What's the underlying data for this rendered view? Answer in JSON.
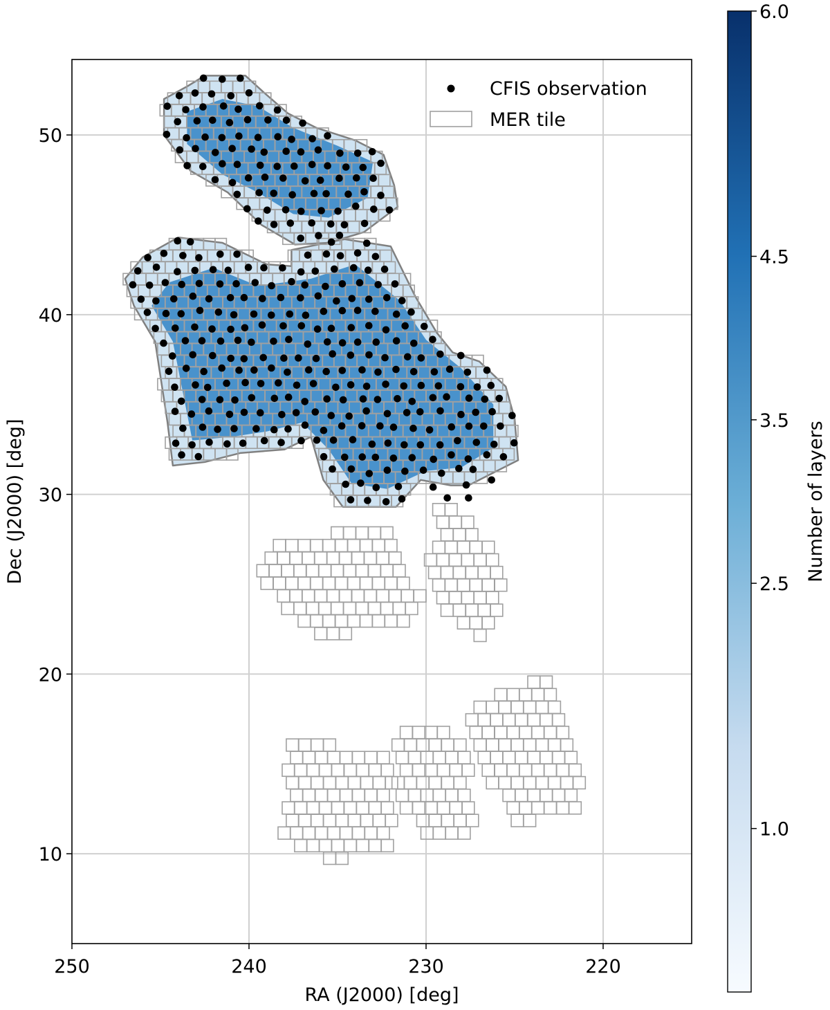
{
  "chart_data": {
    "type": "scatter",
    "xlabel": "RA (J2000) [deg]",
    "ylabel": "Dec (J2000) [deg]",
    "xlim": [
      250,
      215
    ],
    "ylim": [
      5,
      54.2
    ],
    "x_inverted": true,
    "grid": true,
    "xticks": [
      {
        "value": 250,
        "label": "250"
      },
      {
        "value": 240,
        "label": "240"
      },
      {
        "value": 230,
        "label": "230"
      },
      {
        "value": 220,
        "label": "220"
      }
    ],
    "yticks": [
      {
        "value": 10,
        "label": "10"
      },
      {
        "value": 20,
        "label": "20"
      },
      {
        "value": 30,
        "label": "30"
      },
      {
        "value": 40,
        "label": "40"
      },
      {
        "value": 50,
        "label": "50"
      }
    ],
    "legend": {
      "placement": "top-right",
      "entries": [
        {
          "label": "CFIS observation",
          "marker": "dot",
          "color": "#000000"
        },
        {
          "label": "MER tile",
          "marker": "square-outline",
          "color": "#a0a0a0"
        }
      ]
    },
    "colorbar": {
      "label": "Number of layers",
      "range": [
        0,
        6.0
      ],
      "ticks": [
        {
          "value": 1.0,
          "label": "1.0"
        },
        {
          "value": 2.5,
          "label": "2.5"
        },
        {
          "value": 3.5,
          "label": "3.5"
        },
        {
          "value": 4.5,
          "label": "4.5"
        },
        {
          "value": 6.0,
          "label": "6.0"
        }
      ],
      "colors": [
        "#f7fbff",
        "#c6dbef",
        "#6baed6",
        "#2171b5",
        "#08306b"
      ]
    },
    "covered_regions": [
      {
        "name": "north-patch",
        "layers_fill": "#cfe3f2",
        "core_layers_fill": "#3a88c8",
        "boundary_ra_dec": [
          [
            242.5,
            53.3
          ],
          [
            240.2,
            53.3
          ],
          [
            239.2,
            52.4
          ],
          [
            237.8,
            51.2
          ],
          [
            236.2,
            50.4
          ],
          [
            234.0,
            49.7
          ],
          [
            232.4,
            48.9
          ],
          [
            231.8,
            47.2
          ],
          [
            231.6,
            46.0
          ],
          [
            233.5,
            44.6
          ],
          [
            235.5,
            44.0
          ],
          [
            237.4,
            43.9
          ],
          [
            239.3,
            45.0
          ],
          [
            241.2,
            46.8
          ],
          [
            243.3,
            48.0
          ],
          [
            244.8,
            50.0
          ],
          [
            244.8,
            52.0
          ],
          [
            243.5,
            52.7
          ]
        ],
        "core_ra_dec": [
          [
            241.5,
            52.0
          ],
          [
            239.5,
            51.6
          ],
          [
            237.5,
            50.4
          ],
          [
            235.0,
            49.4
          ],
          [
            233.0,
            48.5
          ],
          [
            233.3,
            46.5
          ],
          [
            235.5,
            45.4
          ],
          [
            237.5,
            45.6
          ],
          [
            239.5,
            46.8
          ],
          [
            241.5,
            47.8
          ],
          [
            243.5,
            49.5
          ],
          [
            243.5,
            51.3
          ]
        ]
      },
      {
        "name": "central-patch",
        "layers_fill": "#cfe3f2",
        "core_layers_fill": "#3a88c8",
        "boundary_ra_dec": [
          [
            246.0,
            43.2
          ],
          [
            244.0,
            44.3
          ],
          [
            241.5,
            44.0
          ],
          [
            239.0,
            42.8
          ],
          [
            237.6,
            42.7
          ],
          [
            237.6,
            43.6
          ],
          [
            234.6,
            44.2
          ],
          [
            232.0,
            43.8
          ],
          [
            230.6,
            41.0
          ],
          [
            229.4,
            39.0
          ],
          [
            228.5,
            37.9
          ],
          [
            227.0,
            37.4
          ],
          [
            225.5,
            36.0
          ],
          [
            225.0,
            34.2
          ],
          [
            224.8,
            31.9
          ],
          [
            226.0,
            31.3
          ],
          [
            227.6,
            30.5
          ],
          [
            228.6,
            30.5
          ],
          [
            230.3,
            30.8
          ],
          [
            231.7,
            29.3
          ],
          [
            234.7,
            29.3
          ],
          [
            235.8,
            30.8
          ],
          [
            236.5,
            33.2
          ],
          [
            238.0,
            32.5
          ],
          [
            240.5,
            32.3
          ],
          [
            242.5,
            31.8
          ],
          [
            244.3,
            31.6
          ],
          [
            244.6,
            34.0
          ],
          [
            245.3,
            38.5
          ],
          [
            246.5,
            40.5
          ],
          [
            247.0,
            42.0
          ]
        ],
        "core_ra_dec": [
          [
            244.5,
            41.8
          ],
          [
            242.0,
            42.6
          ],
          [
            239.5,
            41.6
          ],
          [
            236.5,
            42.0
          ],
          [
            234.0,
            42.8
          ],
          [
            231.5,
            40.8
          ],
          [
            230.0,
            38.6
          ],
          [
            228.0,
            37.0
          ],
          [
            226.2,
            35.0
          ],
          [
            226.2,
            32.6
          ],
          [
            228.0,
            31.5
          ],
          [
            230.0,
            31.3
          ],
          [
            232.2,
            30.3
          ],
          [
            234.2,
            30.6
          ],
          [
            235.5,
            32.5
          ],
          [
            237.0,
            34.0
          ],
          [
            239.0,
            33.5
          ],
          [
            241.0,
            33.2
          ],
          [
            243.2,
            33.0
          ],
          [
            243.8,
            36.0
          ],
          [
            244.3,
            38.5
          ],
          [
            245.5,
            40.5
          ]
        ]
      }
    ],
    "cfis_point_density_per_deg2": 0.5,
    "extra_cfis_points": [
      [
        228.8,
        29.8
      ],
      [
        227.6,
        29.8
      ],
      [
        229.6,
        30.4
      ],
      [
        226.3,
        30.8
      ]
    ],
    "mer_tile_regions": [
      {
        "name": "north-patch",
        "tile_size_deg": 0.65,
        "boundary_ra_dec": [
          [
            242.5,
            53.3
          ],
          [
            240.2,
            53.3
          ],
          [
            239.2,
            52.4
          ],
          [
            237.8,
            51.2
          ],
          [
            236.2,
            50.4
          ],
          [
            234.0,
            49.7
          ],
          [
            232.4,
            48.9
          ],
          [
            231.8,
            47.2
          ],
          [
            231.6,
            46.0
          ],
          [
            233.5,
            44.6
          ],
          [
            235.5,
            44.0
          ],
          [
            237.4,
            43.9
          ],
          [
            239.3,
            45.0
          ],
          [
            241.2,
            46.8
          ],
          [
            243.3,
            48.0
          ],
          [
            244.8,
            50.0
          ],
          [
            244.8,
            52.0
          ],
          [
            243.5,
            52.7
          ]
        ]
      },
      {
        "name": "central-patch",
        "tile_size_deg": 0.65,
        "boundary_ra_dec": [
          [
            246.0,
            43.2
          ],
          [
            244.0,
            44.3
          ],
          [
            241.5,
            44.0
          ],
          [
            239.0,
            42.8
          ],
          [
            237.6,
            42.7
          ],
          [
            237.6,
            43.6
          ],
          [
            234.6,
            44.2
          ],
          [
            232.0,
            43.8
          ],
          [
            230.6,
            41.0
          ],
          [
            229.4,
            39.0
          ],
          [
            228.5,
            37.9
          ],
          [
            227.0,
            37.4
          ],
          [
            225.5,
            36.0
          ],
          [
            225.0,
            34.2
          ],
          [
            224.8,
            31.9
          ],
          [
            226.0,
            31.3
          ],
          [
            227.6,
            30.5
          ],
          [
            228.6,
            30.5
          ],
          [
            230.3,
            30.8
          ],
          [
            231.7,
            29.3
          ],
          [
            234.7,
            29.3
          ],
          [
            235.8,
            30.8
          ],
          [
            236.5,
            33.2
          ],
          [
            238.0,
            32.5
          ],
          [
            240.5,
            32.3
          ],
          [
            242.5,
            31.8
          ],
          [
            244.3,
            31.6
          ],
          [
            244.6,
            34.0
          ],
          [
            245.3,
            38.5
          ],
          [
            246.5,
            40.5
          ],
          [
            247.0,
            42.0
          ]
        ]
      },
      {
        "name": "mid-left",
        "tile_size_deg": 0.7,
        "boundary_ra_dec": [
          [
            239.5,
            26.2
          ],
          [
            238.5,
            27.5
          ],
          [
            236.0,
            27.4
          ],
          [
            235.0,
            28.2
          ],
          [
            232.5,
            28.2
          ],
          [
            231.8,
            27.6
          ],
          [
            231.6,
            26.0
          ],
          [
            230.5,
            24.8
          ],
          [
            230.0,
            23.6
          ],
          [
            231.0,
            22.7
          ],
          [
            233.0,
            22.6
          ],
          [
            234.5,
            22.2
          ],
          [
            235.5,
            21.9
          ],
          [
            236.8,
            22.8
          ],
          [
            238.3,
            24.0
          ],
          [
            239.2,
            25.0
          ]
        ]
      },
      {
        "name": "mid-right",
        "tile_size_deg": 0.7,
        "boundary_ra_dec": [
          [
            229.4,
            29.3
          ],
          [
            228.6,
            29.3
          ],
          [
            227.4,
            28.3
          ],
          [
            226.2,
            27.0
          ],
          [
            225.2,
            25.8
          ],
          [
            225.8,
            23.8
          ],
          [
            226.0,
            22.5
          ],
          [
            227.0,
            21.8
          ],
          [
            228.0,
            22.5
          ],
          [
            228.8,
            23.5
          ],
          [
            229.7,
            24.5
          ],
          [
            230.0,
            26.0
          ],
          [
            229.5,
            27.5
          ]
        ]
      },
      {
        "name": "south-left",
        "tile_size_deg": 0.7,
        "boundary_ra_dec": [
          [
            238.0,
            16.0
          ],
          [
            236.0,
            16.3
          ],
          [
            234.5,
            15.8
          ],
          [
            232.5,
            15.9
          ],
          [
            231.6,
            15.5
          ],
          [
            231.8,
            13.0
          ],
          [
            232.0,
            11.2
          ],
          [
            231.8,
            10.3
          ],
          [
            233.5,
            10.0
          ],
          [
            235.0,
            9.4
          ],
          [
            237.0,
            10.2
          ],
          [
            238.3,
            11.0
          ],
          [
            237.8,
            13.5
          ]
        ]
      },
      {
        "name": "south-middle",
        "tile_size_deg": 0.7,
        "boundary_ra_dec": [
          [
            231.8,
            17.0
          ],
          [
            230.5,
            17.5
          ],
          [
            229.0,
            17.3
          ],
          [
            228.2,
            16.5
          ],
          [
            227.8,
            15.5
          ],
          [
            227.3,
            13.5
          ],
          [
            226.8,
            12.0
          ],
          [
            228.0,
            11.0
          ],
          [
            229.5,
            10.8
          ],
          [
            230.5,
            11.5
          ],
          [
            231.5,
            13.0
          ],
          [
            231.8,
            15.0
          ]
        ]
      },
      {
        "name": "south-right",
        "tile_size_deg": 0.7,
        "boundary_ra_dec": [
          [
            227.7,
            18.0
          ],
          [
            226.0,
            19.0
          ],
          [
            224.5,
            19.5
          ],
          [
            223.2,
            20.0
          ],
          [
            222.6,
            19.5
          ],
          [
            222.0,
            18.0
          ],
          [
            221.8,
            16.5
          ],
          [
            221.5,
            14.5
          ],
          [
            221.0,
            13.2
          ],
          [
            221.4,
            12.5
          ],
          [
            223.5,
            12.0
          ],
          [
            224.8,
            11.5
          ],
          [
            225.6,
            12.5
          ],
          [
            226.4,
            14.0
          ],
          [
            227.5,
            15.5
          ],
          [
            227.8,
            17.0
          ]
        ]
      }
    ]
  }
}
